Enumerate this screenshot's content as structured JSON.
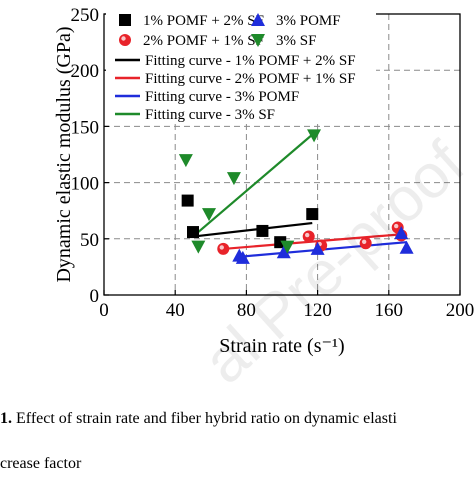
{
  "chart_data": {
    "type": "scatter",
    "xlabel": "Strain rate (s⁻¹)",
    "ylabel": "Dynamic elastic modulus (GPa)",
    "xlim": [
      0,
      200
    ],
    "ylim": [
      0,
      250
    ],
    "xticks": [
      0,
      40,
      80,
      120,
      160,
      200
    ],
    "yticks": [
      0,
      50,
      100,
      150,
      200,
      250
    ],
    "grid": "dashed",
    "legend_position": "top",
    "series": [
      {
        "name": "1% POMF + 2% SF",
        "marker": "square",
        "color": "#000000",
        "x": [
          47,
          50,
          89,
          99,
          117
        ],
        "y": [
          84,
          56,
          57,
          47,
          72
        ]
      },
      {
        "name": "2% POMF + 1% SF",
        "marker": "circle",
        "color": "#e8232a",
        "x": [
          67,
          115,
          122,
          147,
          165,
          167
        ],
        "y": [
          41,
          52,
          44,
          46,
          60,
          53
        ]
      },
      {
        "name": "3% POMF",
        "marker": "triangle-up",
        "color": "#1f2ddb",
        "x": [
          76,
          78,
          101,
          120,
          167,
          170
        ],
        "y": [
          35,
          33,
          38,
          41,
          55,
          42
        ]
      },
      {
        "name": "3% SF",
        "marker": "triangle-down",
        "color": "#1e8a2a",
        "x": [
          46,
          53,
          59,
          73,
          103,
          118
        ],
        "y": [
          120,
          43,
          72,
          104,
          43,
          142
        ]
      }
    ],
    "fits": [
      {
        "name": "Fitting curve - 1% POMF + 2% SF",
        "color": "#000000",
        "x": [
          50,
          117
        ],
        "y": [
          52,
          64
        ]
      },
      {
        "name": "Fitting curve - 2% POMF + 1% SF",
        "color": "#e8232a",
        "x": [
          67,
          167
        ],
        "y": [
          41,
          54
        ]
      },
      {
        "name": "Fitting curve - 3% POMF",
        "color": "#1f2ddb",
        "x": [
          76,
          170
        ],
        "y": [
          34,
          47
        ]
      },
      {
        "name": "Fitting curve - 3% SF",
        "color": "#1e8a2a",
        "x": [
          50,
          118
        ],
        "y": [
          52,
          144
        ]
      }
    ]
  },
  "caption": {
    "label": "1.",
    "text": " Effect of strain rate and fiber hybrid ratio on dynamic elasti"
  },
  "footer": {
    "text": "crease factor"
  },
  "watermark": {
    "text": "al Pre-proof"
  }
}
